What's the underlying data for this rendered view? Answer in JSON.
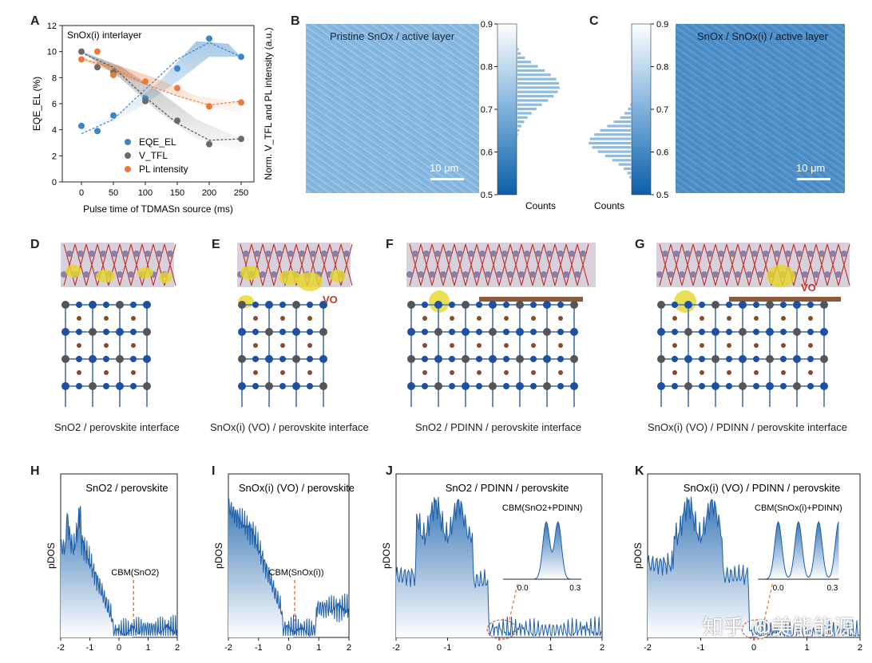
{
  "panels": {
    "A": "A",
    "B": "B",
    "C": "C",
    "D": "D",
    "E": "E",
    "F": "F",
    "G": "G",
    "H": "H",
    "I": "I",
    "J": "J",
    "K": "K"
  },
  "chart_data": [
    {
      "type": "scatter",
      "panel": "A",
      "title": "SnOx(i) interlayer",
      "xlabel": "Pulse time of TDMASn source (ms)",
      "ylabel": "EQE_EL (%)",
      "ylabel_right": "Norm. V_TFL and PL intensity (a.u.)",
      "xlim": [
        -30,
        270
      ],
      "ylim": [
        0,
        12
      ],
      "xticks": [
        0,
        50,
        100,
        150,
        200,
        250
      ],
      "yticks": [
        0,
        2,
        4,
        6,
        8,
        10,
        12
      ],
      "series": [
        {
          "name": "EQE_EL",
          "color": "#3a86c8",
          "x": [
            0,
            25,
            50,
            100,
            150,
            200,
            250
          ],
          "y": [
            4.3,
            3.9,
            5.1,
            6.4,
            8.7,
            11.0,
            9.6
          ]
        },
        {
          "name": "V_TFL",
          "color": "#6a6a6a",
          "x": [
            0,
            25,
            50,
            100,
            150,
            200,
            250
          ],
          "y": [
            10.0,
            8.8,
            8.4,
            6.2,
            4.7,
            2.9,
            3.3
          ]
        },
        {
          "name": "PL intensity",
          "color": "#ee7a3a",
          "x": [
            0,
            25,
            50,
            100,
            150,
            200,
            250
          ],
          "y": [
            9.4,
            10.0,
            8.2,
            7.7,
            7.2,
            5.8,
            6.1
          ]
        }
      ]
    },
    {
      "type": "bar",
      "panel": "B",
      "orientation": "horizontal",
      "xlabel": "Counts",
      "ylim": [
        0.5,
        0.9
      ],
      "yticks": [
        "0.5",
        "0.6",
        "0.7",
        "0.8",
        "0.9"
      ],
      "bins": [
        0.64,
        0.65,
        0.66,
        0.67,
        0.68,
        0.69,
        0.7,
        0.71,
        0.72,
        0.73,
        0.74,
        0.75,
        0.76,
        0.77,
        0.78,
        0.79,
        0.8,
        0.81,
        0.82,
        0.83,
        0.84
      ],
      "values": [
        2,
        4,
        7,
        11,
        16,
        22,
        29,
        37,
        46,
        54,
        60,
        63,
        62,
        58,
        50,
        41,
        31,
        21,
        12,
        6,
        3
      ]
    },
    {
      "type": "bar",
      "panel": "C",
      "orientation": "horizontal",
      "xlabel": "Counts",
      "ylim": [
        0.5,
        0.9
      ],
      "yticks": [
        "0.5",
        "0.6",
        "0.7",
        "0.8",
        "0.9"
      ],
      "bins": [
        0.54,
        0.55,
        0.56,
        0.57,
        0.58,
        0.59,
        0.6,
        0.61,
        0.62,
        0.63,
        0.64,
        0.65,
        0.66,
        0.67,
        0.68,
        0.69,
        0.7,
        0.71
      ],
      "values": [
        3,
        6,
        11,
        18,
        27,
        37,
        47,
        55,
        60,
        58,
        52,
        44,
        34,
        25,
        16,
        10,
        5,
        2
      ]
    },
    {
      "type": "area",
      "panel": "H",
      "title": "SnO2 / perovskite",
      "ylabel": "pDOS",
      "xlim": [
        -2,
        2
      ],
      "xticks": [
        "-2",
        "-1",
        "0",
        "1",
        "2"
      ],
      "annotation": "CBM(SnO2)",
      "cbm_x": 0.5
    },
    {
      "type": "area",
      "panel": "I",
      "title": "SnOx(i) (VO) / perovskite",
      "ylabel": "pDOS",
      "xlim": [
        -2,
        2
      ],
      "xticks": [
        "-2",
        "-1",
        "0",
        "1",
        "2"
      ],
      "annotation": "CBM(SnOx(i))",
      "cbm_x": 0.2
    },
    {
      "type": "area",
      "panel": "J",
      "title": "SnO2 / PDINN / perovskite",
      "ylabel": "pDOS",
      "xlim": [
        -2,
        2
      ],
      "xticks": [
        "-2",
        "-1",
        "0",
        "1",
        "2"
      ],
      "inset_label": "CBM(SnO2+PDINN)",
      "inset_xticks": [
        "0.0",
        "0.3"
      ]
    },
    {
      "type": "area",
      "panel": "K",
      "title": "SnOx(i) (VO) / PDINN / perovskite",
      "ylabel": "pDOS",
      "xlim": [
        -2,
        2
      ],
      "xticks": [
        "-2",
        "-1",
        "0",
        "1",
        "2"
      ],
      "inset_label": "CBM(SnOx(i)+PDINN)",
      "inset_xticks": [
        "0.0",
        "0.3"
      ]
    }
  ],
  "maps": {
    "B": {
      "label": "Pristine SnOx / active layer",
      "scale": "10 μm"
    },
    "C": {
      "label": "SnOx / SnOx(i) / active layer",
      "scale": "10 μm"
    }
  },
  "structures": {
    "D": {
      "caption": "SnO2 / perovskite interface"
    },
    "E": {
      "caption": "SnOx(i) (VO) / perovskite interface",
      "label": "VO"
    },
    "F": {
      "caption": "SnO2 / PDINN / perovskite interface"
    },
    "G": {
      "caption": "SnOx(i) (VO) / PDINN / perovskite interface",
      "label": "VO"
    }
  },
  "watermark": "知乎 @美能能源",
  "colors": {
    "blue": "#3a86c8",
    "gray": "#6a6a6a",
    "orange": "#ee7a3a",
    "mapblue": "#5b9bd0"
  }
}
